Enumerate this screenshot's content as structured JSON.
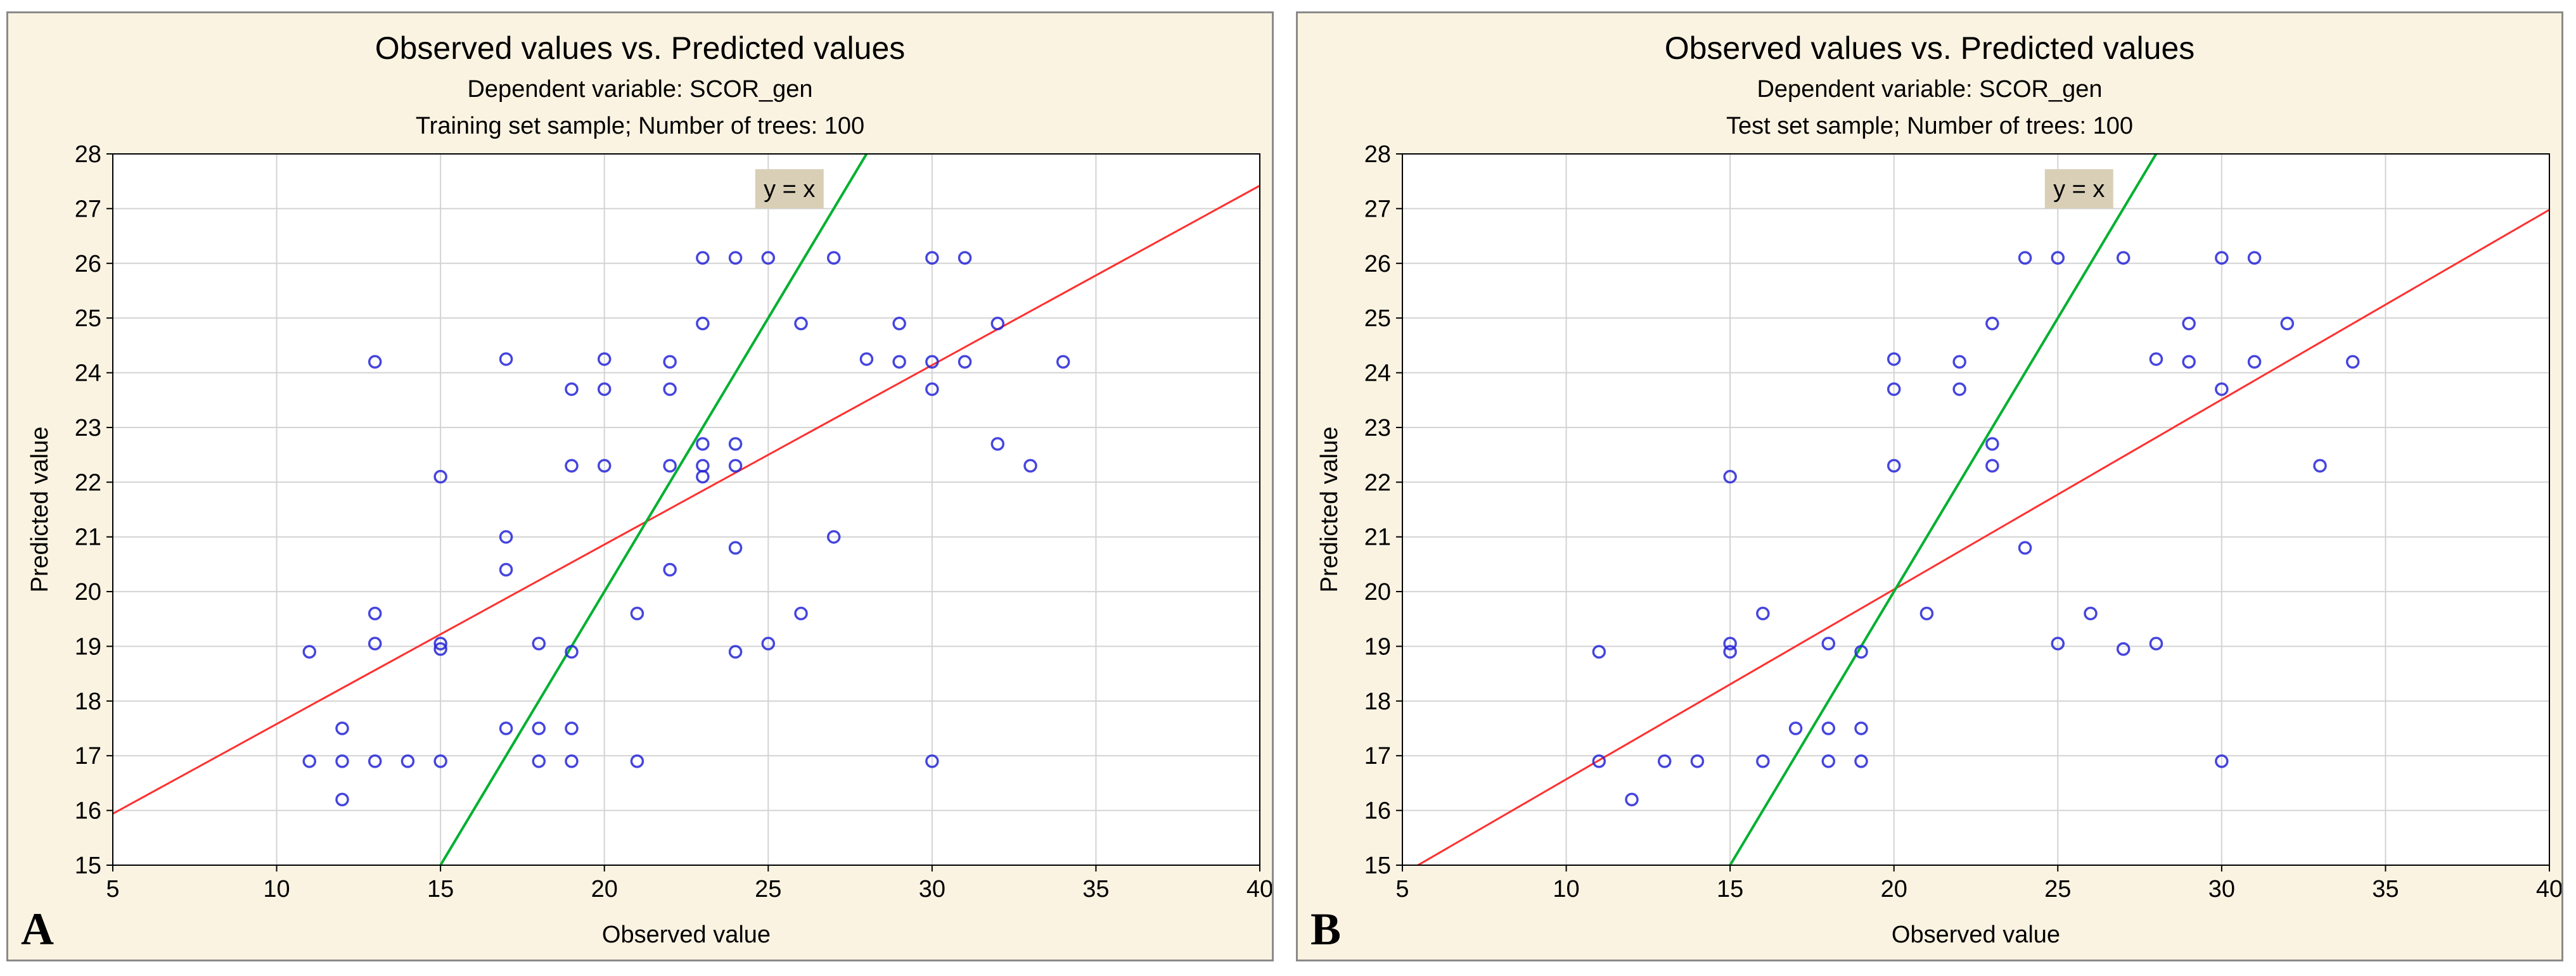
{
  "panels": [
    {
      "id": "A",
      "panel_label": "A",
      "title": "Observed values vs. Predicted values",
      "subtitle1": "Dependent variable: SCOR_gen",
      "subtitle2": "Training set sample; Number of trees: 100",
      "annotation": "y = x"
    },
    {
      "id": "B",
      "panel_label": "B",
      "title": "Observed values vs. Predicted values",
      "subtitle1": "Dependent variable: SCOR_gen",
      "subtitle2": "Test set sample; Number of trees: 100",
      "annotation": "y = x"
    }
  ],
  "colors": {
    "points": "#2525d8",
    "fit_line": "#ff3030",
    "identity_line": "#00b030",
    "grid": "#d3d3d3",
    "panel_bg": "#fbf3e2",
    "plot_bg": "#ffffff",
    "annotation_bg": "#d8cfb6"
  },
  "chart_data": [
    {
      "type": "scatter",
      "title": "Observed values vs. Predicted values",
      "subtitle": [
        "Dependent variable: SCOR_gen",
        "Training set sample; Number of trees: 100"
      ],
      "xlabel": "Observed value",
      "ylabel": "Predicted value",
      "xlim": [
        5,
        40
      ],
      "ylim": [
        15,
        28
      ],
      "xticks": [
        5,
        10,
        15,
        20,
        25,
        30,
        35,
        40
      ],
      "yticks": [
        15,
        16,
        17,
        18,
        19,
        20,
        21,
        22,
        23,
        24,
        25,
        26,
        27,
        28
      ],
      "grid": true,
      "points": [
        [
          11,
          18.9
        ],
        [
          11,
          16.9
        ],
        [
          12,
          17.5
        ],
        [
          12,
          16.9
        ],
        [
          12,
          16.2
        ],
        [
          13,
          19.6
        ],
        [
          13,
          19.05
        ],
        [
          13,
          16.9
        ],
        [
          13,
          24.2
        ],
        [
          14,
          16.9
        ],
        [
          15,
          19.05
        ],
        [
          15,
          18.95
        ],
        [
          15,
          16.9
        ],
        [
          15,
          22.1
        ],
        [
          17,
          24.25
        ],
        [
          17,
          21.0
        ],
        [
          17,
          20.4
        ],
        [
          17,
          17.5
        ],
        [
          18,
          19.05
        ],
        [
          18,
          17.5
        ],
        [
          18,
          16.9
        ],
        [
          19,
          23.7
        ],
        [
          19,
          22.3
        ],
        [
          19,
          18.9
        ],
        [
          19,
          17.5
        ],
        [
          19,
          16.9
        ],
        [
          20,
          24.25
        ],
        [
          20,
          23.7
        ],
        [
          20,
          22.3
        ],
        [
          21,
          19.6
        ],
        [
          21,
          16.9
        ],
        [
          22,
          24.2
        ],
        [
          22,
          23.7
        ],
        [
          22,
          22.3
        ],
        [
          22,
          20.4
        ],
        [
          23,
          26.1
        ],
        [
          23,
          24.9
        ],
        [
          23,
          22.7
        ],
        [
          23,
          22.3
        ],
        [
          23,
          22.1
        ],
        [
          24,
          26.1
        ],
        [
          24,
          22.7
        ],
        [
          24,
          22.3
        ],
        [
          24,
          20.8
        ],
        [
          24,
          18.9
        ],
        [
          25,
          26.1
        ],
        [
          25,
          19.05
        ],
        [
          26,
          24.9
        ],
        [
          26,
          19.6
        ],
        [
          27,
          26.1
        ],
        [
          27,
          21.0
        ],
        [
          28,
          24.25
        ],
        [
          29,
          24.9
        ],
        [
          29,
          24.2
        ],
        [
          30,
          26.1
        ],
        [
          30,
          24.2
        ],
        [
          30,
          23.7
        ],
        [
          30,
          16.9
        ],
        [
          31,
          26.1
        ],
        [
          31,
          24.2
        ],
        [
          32,
          24.9
        ],
        [
          32,
          22.7
        ],
        [
          33,
          22.3
        ],
        [
          34,
          24.2
        ]
      ],
      "fit_line": {
        "slope": 0.328,
        "intercept": 14.3
      },
      "identity_line": {
        "label": "y = x"
      }
    },
    {
      "type": "scatter",
      "title": "Observed values vs. Predicted values",
      "subtitle": [
        "Dependent variable: SCOR_gen",
        "Test set sample; Number of trees: 100"
      ],
      "xlabel": "Observed value",
      "ylabel": "Predicted value",
      "xlim": [
        5,
        40
      ],
      "ylim": [
        15,
        28
      ],
      "xticks": [
        5,
        10,
        15,
        20,
        25,
        30,
        35,
        40
      ],
      "yticks": [
        15,
        16,
        17,
        18,
        19,
        20,
        21,
        22,
        23,
        24,
        25,
        26,
        27,
        28
      ],
      "grid": true,
      "points": [
        [
          11,
          18.9
        ],
        [
          11,
          16.9
        ],
        [
          12,
          16.2
        ],
        [
          13,
          16.9
        ],
        [
          14,
          16.9
        ],
        [
          15,
          22.1
        ],
        [
          15,
          19.05
        ],
        [
          15,
          18.9
        ],
        [
          16,
          19.6
        ],
        [
          16,
          16.9
        ],
        [
          17,
          17.5
        ],
        [
          18,
          19.05
        ],
        [
          18,
          17.5
        ],
        [
          18,
          16.9
        ],
        [
          19,
          18.9
        ],
        [
          19,
          17.5
        ],
        [
          19,
          16.9
        ],
        [
          20,
          24.25
        ],
        [
          20,
          23.7
        ],
        [
          20,
          22.3
        ],
        [
          21,
          19.6
        ],
        [
          22,
          24.2
        ],
        [
          22,
          23.7
        ],
        [
          23,
          24.9
        ],
        [
          23,
          22.7
        ],
        [
          23,
          22.3
        ],
        [
          24,
          26.1
        ],
        [
          24,
          20.8
        ],
        [
          25,
          26.1
        ],
        [
          25,
          19.05
        ],
        [
          26,
          19.6
        ],
        [
          27,
          26.1
        ],
        [
          27,
          18.95
        ],
        [
          28,
          24.25
        ],
        [
          28,
          19.05
        ],
        [
          29,
          24.9
        ],
        [
          29,
          24.2
        ],
        [
          30,
          26.1
        ],
        [
          30,
          23.7
        ],
        [
          30,
          16.9
        ],
        [
          31,
          26.1
        ],
        [
          31,
          24.2
        ],
        [
          32,
          24.9
        ],
        [
          33,
          22.3
        ],
        [
          34,
          24.2
        ]
      ],
      "fit_line": {
        "slope": 0.347,
        "intercept": 13.1
      },
      "identity_line": {
        "label": "y = x"
      }
    }
  ]
}
